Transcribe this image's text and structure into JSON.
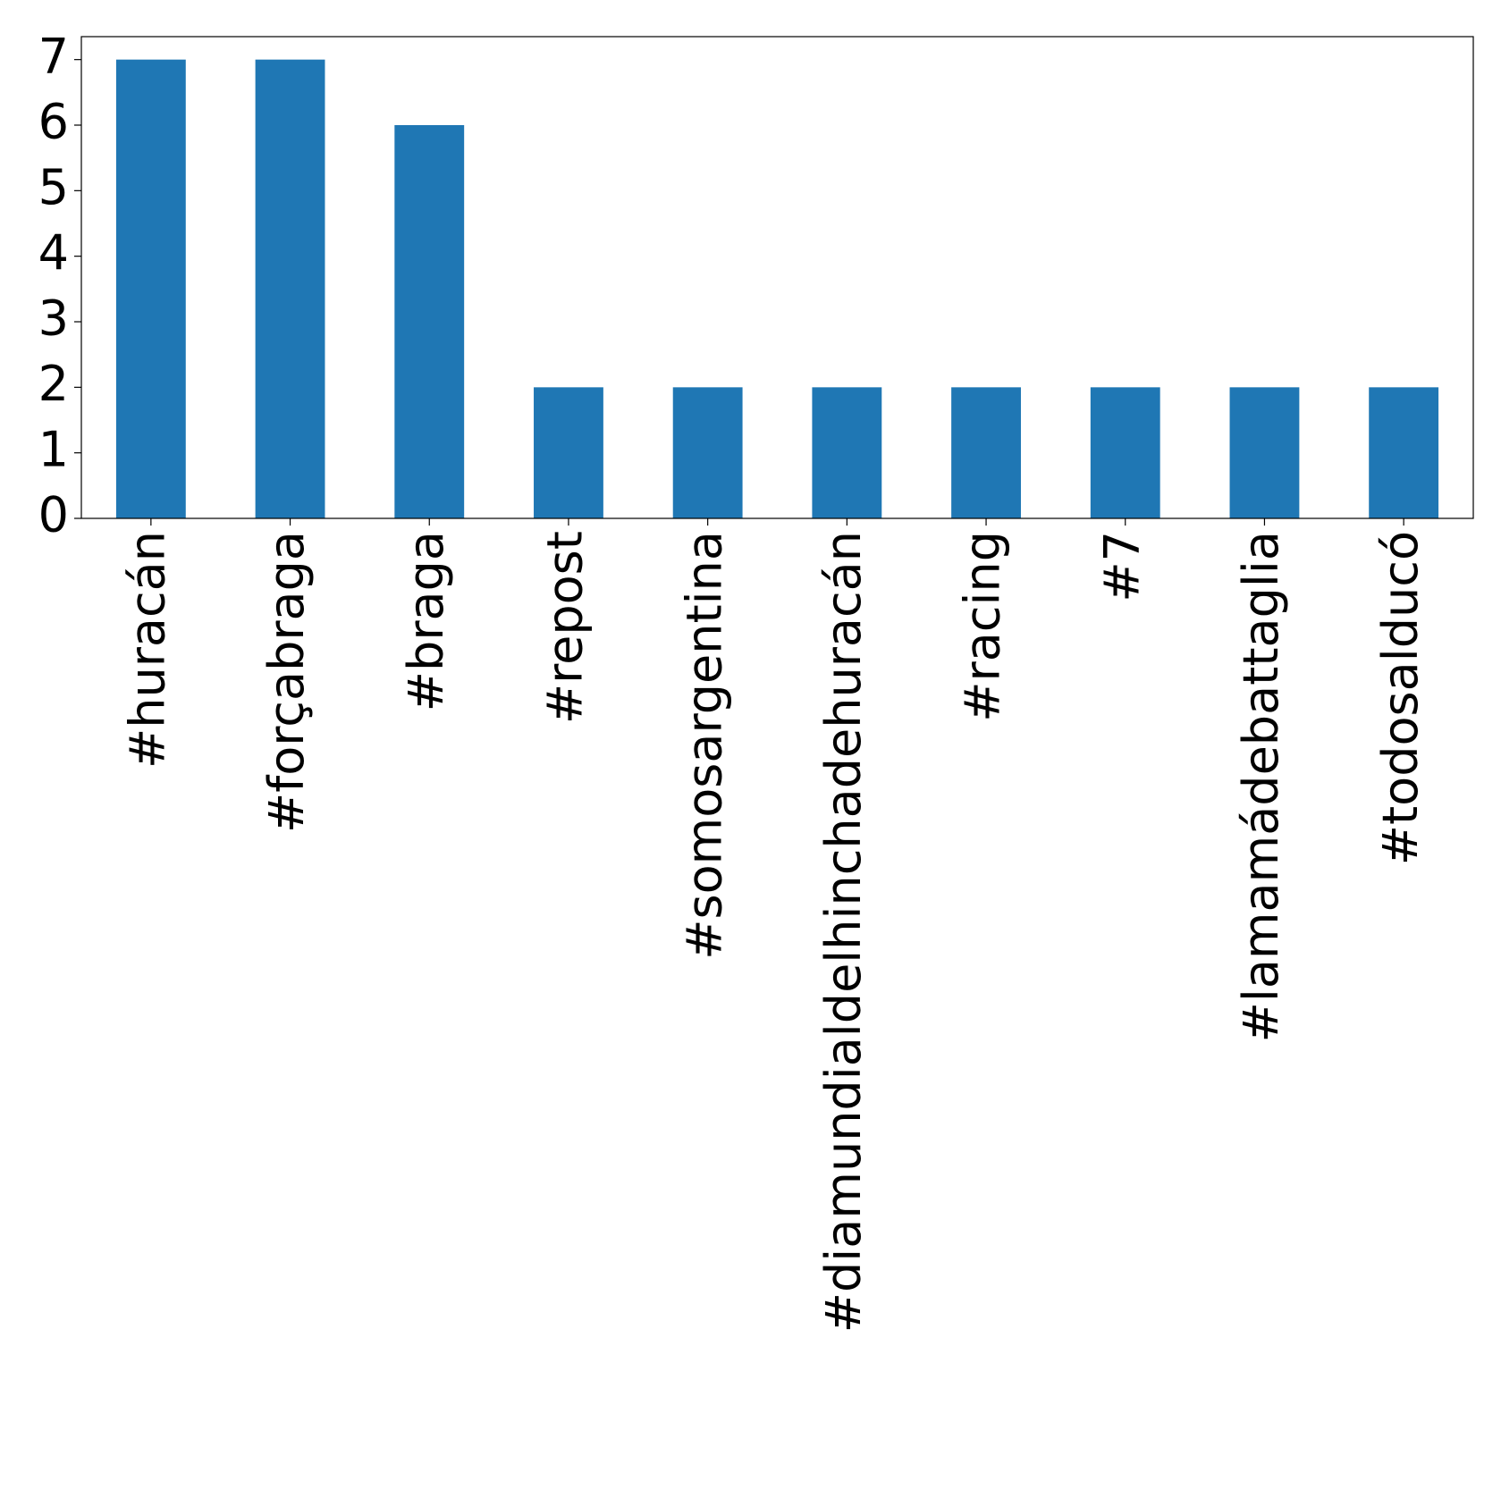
{
  "chart_data": {
    "type": "bar",
    "categories": [
      "#huracán",
      "#forçabraga",
      "#braga",
      "#repost",
      "#somosargentina",
      "#diamundialdelhinchadehuracán",
      "#racing",
      "#7",
      "#lamamádebattaglia",
      "#todosalducó"
    ],
    "values": [
      7,
      7,
      6,
      2,
      2,
      2,
      2,
      2,
      2,
      2
    ],
    "color": "#1f77b4",
    "ylim": [
      0,
      7.35
    ],
    "yticks": [
      0,
      1,
      2,
      3,
      4,
      5,
      6,
      7
    ],
    "grid": false
  }
}
